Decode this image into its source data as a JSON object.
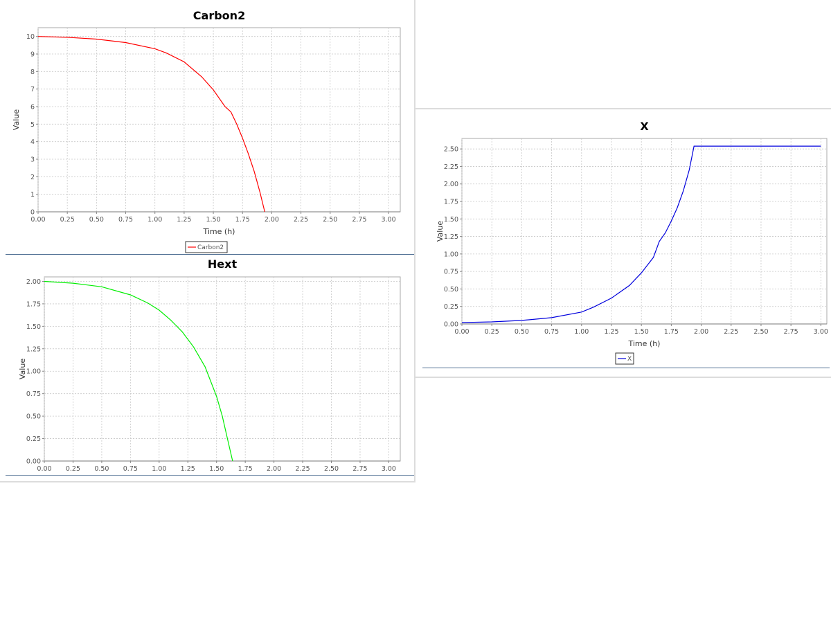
{
  "chart_data": [
    {
      "id": "carbon2",
      "type": "line",
      "title": "Carbon2",
      "xlabel": "Time (h)",
      "ylabel": "Value",
      "xlim": [
        0,
        3.1
      ],
      "ylim": [
        0,
        10.5
      ],
      "xticks": [
        "0.00",
        "0.25",
        "0.50",
        "0.75",
        "1.00",
        "1.25",
        "1.50",
        "1.75",
        "2.00",
        "2.25",
        "2.50",
        "2.75",
        "3.00"
      ],
      "yticks": [
        "0",
        "1",
        "2",
        "3",
        "4",
        "5",
        "6",
        "7",
        "8",
        "9",
        "10"
      ],
      "series": [
        {
          "name": "Carbon2",
          "color": "#ff0000",
          "x": [
            0,
            0.25,
            0.5,
            0.75,
            1.0,
            1.1,
            1.25,
            1.4,
            1.5,
            1.6,
            1.65,
            1.7,
            1.75,
            1.8,
            1.85,
            1.9,
            1.94
          ],
          "y": [
            10,
            9.95,
            9.85,
            9.65,
            9.3,
            9.05,
            8.55,
            7.7,
            6.95,
            6.0,
            5.7,
            5.0,
            4.2,
            3.3,
            2.3,
            1.1,
            0
          ]
        }
      ],
      "legend": "Carbon2"
    },
    {
      "id": "hext",
      "type": "line",
      "title": "Hext",
      "xlabel": "",
      "ylabel": "Value",
      "xlim": [
        0,
        3.1
      ],
      "ylim": [
        0,
        2.05
      ],
      "xticks": [
        "0.00",
        "0.25",
        "0.50",
        "0.75",
        "1.00",
        "1.25",
        "1.50",
        "1.75",
        "2.00",
        "2.25",
        "2.50",
        "2.75",
        "3.00"
      ],
      "yticks": [
        "0.00",
        "0.25",
        "0.50",
        "0.75",
        "1.00",
        "1.25",
        "1.50",
        "1.75",
        "2.00"
      ],
      "series": [
        {
          "name": "Hext",
          "color": "#00ee00",
          "x": [
            0,
            0.25,
            0.5,
            0.75,
            0.9,
            1.0,
            1.1,
            1.2,
            1.3,
            1.4,
            1.5,
            1.55,
            1.6,
            1.64
          ],
          "y": [
            2.0,
            1.98,
            1.94,
            1.85,
            1.76,
            1.68,
            1.57,
            1.44,
            1.27,
            1.05,
            0.72,
            0.5,
            0.22,
            0
          ]
        }
      ],
      "legend": ""
    },
    {
      "id": "x",
      "type": "line",
      "title": "X",
      "xlabel": "Time (h)",
      "ylabel": "Value",
      "xlim": [
        0,
        3.05
      ],
      "ylim": [
        0,
        2.65
      ],
      "xticks": [
        "0.00",
        "0.25",
        "0.50",
        "0.75",
        "1.00",
        "1.25",
        "1.50",
        "1.75",
        "2.00",
        "2.25",
        "2.50",
        "2.75",
        "3.00"
      ],
      "yticks": [
        "0.00",
        "0.25",
        "0.50",
        "0.75",
        "1.00",
        "1.25",
        "1.50",
        "1.75",
        "2.00",
        "2.25",
        "2.50"
      ],
      "series": [
        {
          "name": "X",
          "color": "#0000dd",
          "x": [
            0,
            0.25,
            0.5,
            0.75,
            1.0,
            1.1,
            1.25,
            1.4,
            1.5,
            1.6,
            1.65,
            1.7,
            1.75,
            1.8,
            1.85,
            1.9,
            1.94,
            2.0,
            2.5,
            3.0
          ],
          "y": [
            0.02,
            0.03,
            0.05,
            0.09,
            0.17,
            0.24,
            0.37,
            0.55,
            0.73,
            0.95,
            1.18,
            1.3,
            1.47,
            1.66,
            1.9,
            2.2,
            2.54,
            2.54,
            2.54,
            2.54
          ]
        }
      ],
      "legend": "X"
    }
  ]
}
